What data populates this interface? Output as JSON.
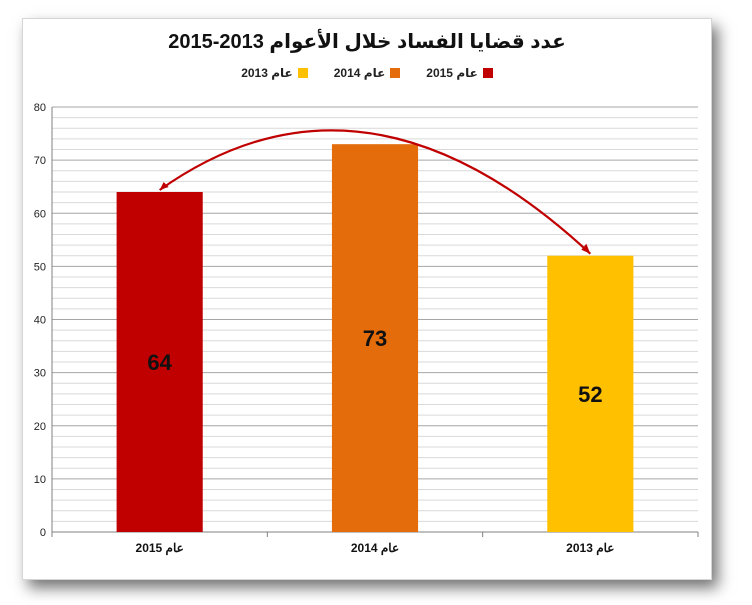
{
  "chart_data": {
    "type": "bar",
    "title": "عدد قضايا الفساد خلال الأعوام 2013-2015",
    "categories": [
      "عام 2015",
      "عام 2014",
      "عام 2013"
    ],
    "values": [
      64,
      73,
      52
    ],
    "colors": [
      "#c00000",
      "#e46c0a",
      "#ffc000"
    ],
    "legend": {
      "position": "top",
      "entries": [
        {
          "label": "عام 2015",
          "color": "#c00000"
        },
        {
          "label": "عام 2014",
          "color": "#e46c0a"
        },
        {
          "label": "عام 2013",
          "color": "#ffc000"
        }
      ]
    },
    "ylim": [
      0,
      80
    ],
    "yticks": [
      0,
      10,
      20,
      30,
      40,
      50,
      60,
      70,
      80
    ],
    "grid": true,
    "trend_arc_color": "#c00000"
  }
}
